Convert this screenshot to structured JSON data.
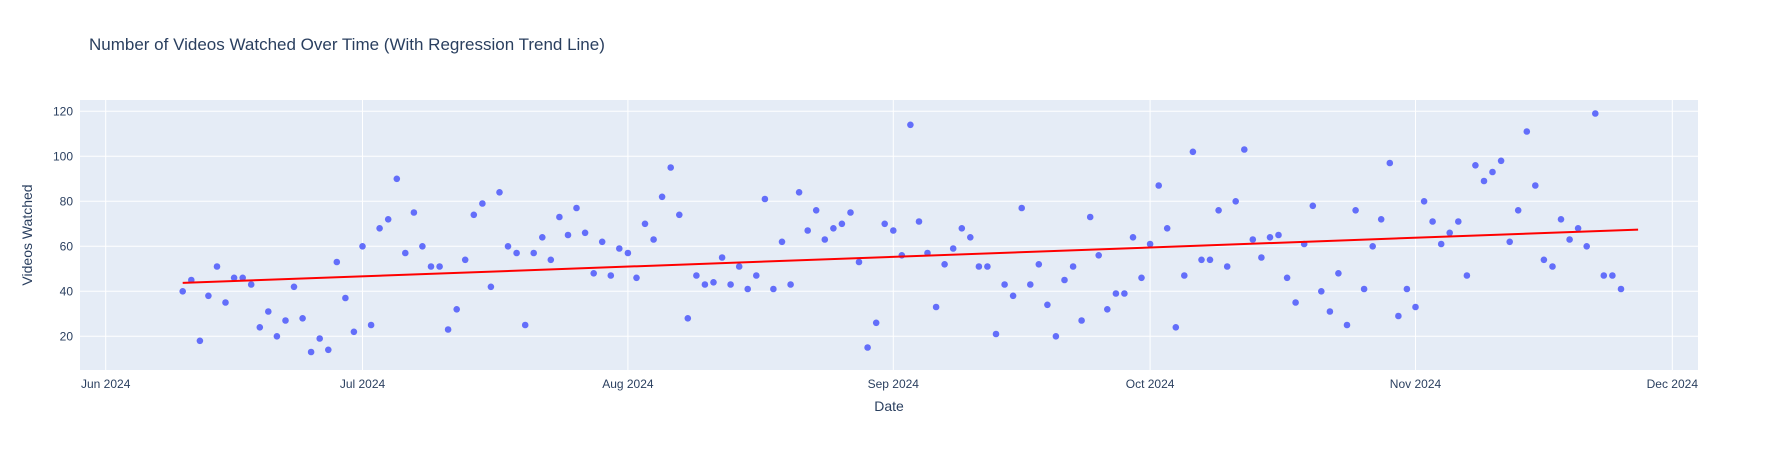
{
  "chart_data": {
    "type": "scatter",
    "title": "Number of Videos Watched Over Time (With Regression Trend Line)",
    "xlabel": "Date",
    "ylabel": "Videos Watched",
    "xlim": [
      "2024-05-29",
      "2024-12-04"
    ],
    "ylim": [
      5,
      125
    ],
    "x_ticks": [
      {
        "date": "2024-06-01",
        "label": "Jun 2024"
      },
      {
        "date": "2024-07-01",
        "label": "Jul 2024"
      },
      {
        "date": "2024-08-01",
        "label": "Aug 2024"
      },
      {
        "date": "2024-09-01",
        "label": "Sep 2024"
      },
      {
        "date": "2024-10-01",
        "label": "Oct 2024"
      },
      {
        "date": "2024-11-01",
        "label": "Nov 2024"
      },
      {
        "date": "2024-12-01",
        "label": "Dec 2024"
      }
    ],
    "y_ticks": [
      {
        "value": 20,
        "label": "20"
      },
      {
        "value": 40,
        "label": "40"
      },
      {
        "value": 60,
        "label": "60"
      },
      {
        "value": 80,
        "label": "80"
      },
      {
        "value": 100,
        "label": "100"
      },
      {
        "value": 120,
        "label": "120"
      }
    ],
    "grid": true,
    "background_color": "#e5ecf6",
    "series": [
      {
        "mode": "markers",
        "color": "#636efa",
        "start_date": "2024-06-10",
        "values": [
          40,
          45,
          18,
          38,
          51,
          35,
          46,
          46,
          43,
          24,
          31,
          20,
          27,
          42,
          28,
          13,
          19,
          14,
          53,
          37,
          22,
          60,
          25,
          68,
          72,
          90,
          57,
          75,
          60,
          51,
          51,
          23,
          32,
          54,
          74,
          79,
          42,
          84,
          60,
          57,
          25,
          57,
          64,
          54,
          73,
          65,
          77,
          66,
          48,
          62,
          47,
          59,
          57,
          46,
          70,
          63,
          82,
          95,
          74,
          28,
          47,
          43,
          44,
          55,
          43,
          51,
          41,
          47,
          81,
          41,
          62,
          43,
          84,
          67,
          76,
          63,
          68,
          70,
          75,
          53,
          15,
          26,
          70,
          67,
          56,
          114,
          71,
          57,
          33,
          52,
          59,
          68,
          64,
          51,
          51,
          21,
          43,
          38,
          77,
          43,
          52,
          34,
          20,
          45,
          51,
          27,
          73,
          56,
          32,
          39,
          39,
          64,
          46,
          61,
          87,
          68,
          24,
          47,
          102,
          54,
          54,
          76,
          51,
          80,
          103,
          63,
          55,
          64,
          65,
          46,
          35,
          61,
          78,
          40,
          31,
          48,
          25,
          76,
          41,
          60,
          72,
          97,
          29,
          41,
          33,
          80,
          71,
          61,
          66,
          71,
          47,
          96,
          89,
          93,
          98,
          62,
          76,
          111,
          87,
          54,
          51,
          72,
          63,
          68,
          60,
          119,
          47,
          47,
          41
        ]
      },
      {
        "mode": "lines",
        "color": "#ff0000",
        "x": [
          "2024-06-10",
          "2024-11-27"
        ],
        "y": [
          43.7,
          67.4
        ]
      }
    ]
  }
}
